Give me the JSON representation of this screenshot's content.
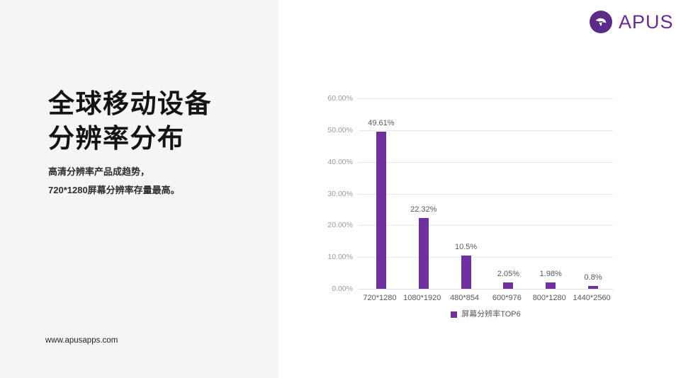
{
  "brand": {
    "name": "APUS",
    "logo_icon": "swallow-bird-icon",
    "logo_circle_color": "#5B2B87",
    "logo_text_color": "#662D91"
  },
  "left_panel": {
    "title_line1": "全球移动设备",
    "title_line2": "分辨率分布",
    "subtitle_line1": "高清分辨率产品成趋势，",
    "subtitle_line2": "720*1280屏幕分辨率存量最高。",
    "footer_url": "www.apusapps.com"
  },
  "chart_data": {
    "type": "bar",
    "title": "",
    "categories": [
      "720*1280",
      "1080*1920",
      "480*854",
      "600*976",
      "800*1280",
      "1440*2560"
    ],
    "values": [
      49.61,
      22.32,
      10.5,
      2.05,
      1.98,
      0.8
    ],
    "value_labels": [
      "49.61%",
      "22.32%",
      "10.5%",
      "2.05%",
      "1.98%",
      "0.8%"
    ],
    "y_ticks": [
      "60.00%",
      "50.00%",
      "40.00%",
      "30.00%",
      "20.00%",
      "10.00%",
      "0.00%"
    ],
    "ylim": [
      0,
      60
    ],
    "xlabel": "",
    "ylabel": "",
    "grid": true,
    "legend": "屏幕分辨率TOP6",
    "legend_position": "bottom",
    "bar_color": "#7030A0",
    "gridline_color": "#e9e9e9"
  }
}
